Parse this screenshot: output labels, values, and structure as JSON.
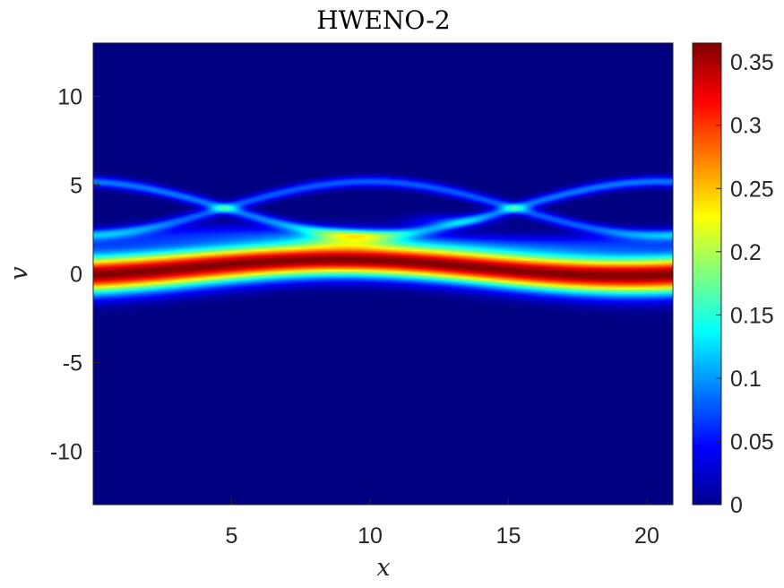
{
  "chart_data": {
    "type": "heatmap",
    "title": "HWENO-2",
    "xlabel": "x",
    "ylabel": "v",
    "xlim": [
      0,
      20.94
    ],
    "ylim": [
      -13,
      13
    ],
    "x_ticks": [
      5,
      10,
      15,
      20
    ],
    "x_tick_labels": [
      "5",
      "10",
      "15",
      "20"
    ],
    "y_ticks": [
      10,
      5,
      0,
      -5,
      -10
    ],
    "y_tick_labels": [
      "10",
      "5",
      "0",
      "-5",
      "-10"
    ],
    "colormap": "jet",
    "clim": [
      0,
      0.365
    ],
    "colorbar": {
      "ticks": [
        0.35,
        0.3,
        0.25,
        0.2,
        0.15,
        0.1,
        0.05,
        0
      ],
      "tick_labels": [
        "0.35",
        "0.3",
        "0.25",
        "0.2",
        "0.15",
        "0.1",
        "0.05",
        "0"
      ]
    },
    "features": [
      {
        "kind": "central band",
        "peak_value": 0.365,
        "v_center_range": [
          -0.5,
          0.8
        ],
        "v_halfwidth": 1.0
      },
      {
        "kind": "upper filaments",
        "value_range": [
          0.03,
          0.2
        ],
        "v_range": [
          1.5,
          6
        ]
      }
    ],
    "grid": false
  }
}
